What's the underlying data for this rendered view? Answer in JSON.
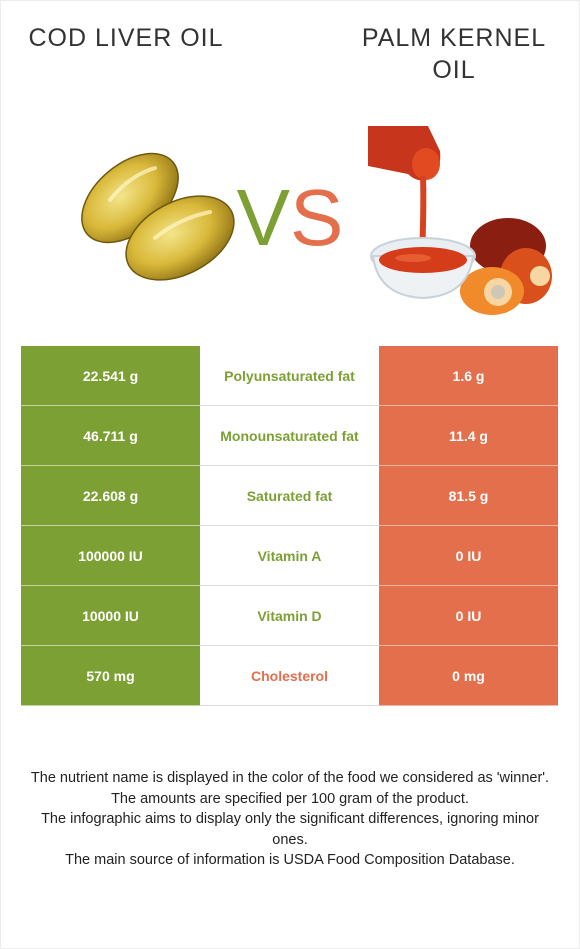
{
  "foods": {
    "left": {
      "name": "Cod liver oil",
      "color": "#7da034"
    },
    "right": {
      "name": "Palm kernel oil",
      "color": "#e46f4d"
    }
  },
  "vs": {
    "v": "V",
    "s": "S"
  },
  "rows": [
    {
      "nutrient": "Polyunsaturated fat",
      "left": "22.541 g",
      "right": "1.6 g",
      "winner": "left"
    },
    {
      "nutrient": "Monounsaturated fat",
      "left": "46.711 g",
      "right": "11.4 g",
      "winner": "left"
    },
    {
      "nutrient": "Saturated fat",
      "left": "22.608 g",
      "right": "81.5 g",
      "winner": "left"
    },
    {
      "nutrient": "Vitamin A",
      "left": "100000 IU",
      "right": "0 IU",
      "winner": "left"
    },
    {
      "nutrient": "Vitamin D",
      "left": "10000 IU",
      "right": "0 IU",
      "winner": "left"
    },
    {
      "nutrient": "Cholesterol",
      "left": "570 mg",
      "right": "0 mg",
      "winner": "right"
    }
  ],
  "notes": [
    "The nutrient name is displayed in the color of the food we considered as 'winner'.",
    "The amounts are specified per 100 gram of the product.",
    "The infographic aims to display only the significant differences, ignoring minor ones.",
    "The main source of information is USDA Food Composition Database."
  ]
}
